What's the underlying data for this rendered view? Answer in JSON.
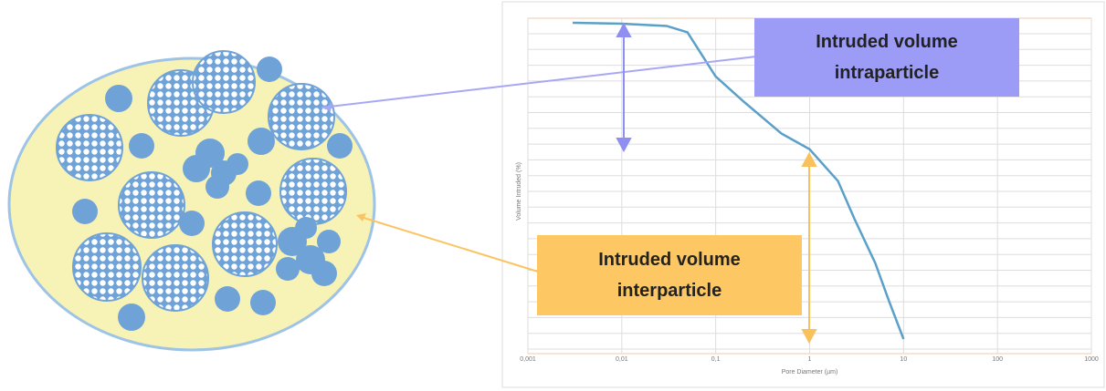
{
  "chart_data": {
    "type": "line",
    "x_label": "Pore Diameter (µm)",
    "y_label": "Volume Intruded (%)",
    "x_scale": "log",
    "xlim": [
      0.001,
      1000
    ],
    "xticks": [
      {
        "value": 0.001,
        "label": "0,001"
      },
      {
        "value": 0.01,
        "label": "0,01"
      },
      {
        "value": 0.1,
        "label": "0,1"
      },
      1,
      10,
      100,
      1000
    ],
    "ylim": [
      0,
      100
    ],
    "grid": true,
    "series": [
      {
        "color": "#5aa0c8",
        "x": [
          0.003,
          0.01,
          0.03,
          0.05,
          0.1,
          0.2,
          0.5,
          1,
          2,
          3,
          5,
          7,
          10
        ],
        "values": [
          100,
          99.7,
          99,
          97,
          83,
          75,
          65,
          60,
          50,
          38,
          24,
          12,
          0
        ]
      }
    ],
    "annotations": [
      "Intruded volume intraparticle",
      "Intruded volume interparticle"
    ]
  }
}
